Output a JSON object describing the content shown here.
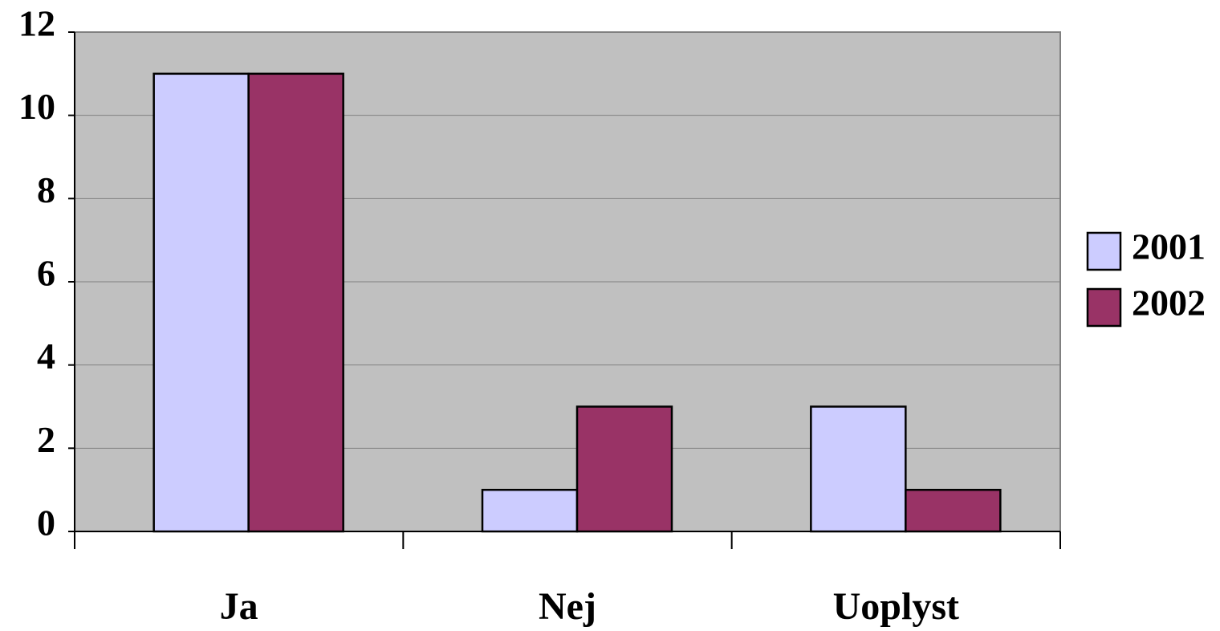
{
  "chart_data": {
    "type": "bar",
    "categories": [
      "Ja",
      "Nej",
      "Uoplyst"
    ],
    "series": [
      {
        "name": "2001",
        "color": "#ccccff",
        "values": [
          11,
          1,
          3
        ]
      },
      {
        "name": "2002",
        "color": "#993366",
        "values": [
          11,
          3,
          1
        ]
      }
    ],
    "ylim": [
      0,
      12
    ],
    "yticks": [
      0,
      2,
      4,
      6,
      8,
      10,
      12
    ],
    "grid": true,
    "legend": "right"
  }
}
